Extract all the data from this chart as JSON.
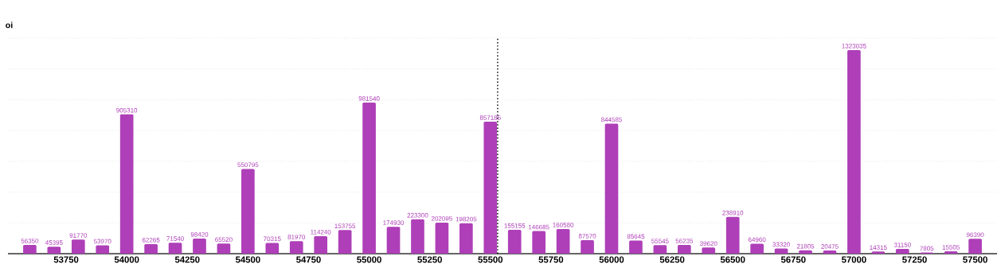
{
  "chart_data": {
    "type": "bar",
    "ylabel": "oi",
    "x": [
      53600,
      53700,
      53800,
      53900,
      54000,
      54100,
      54200,
      54300,
      54400,
      54500,
      54600,
      54700,
      54800,
      54900,
      55000,
      55100,
      55200,
      55300,
      55400,
      55500,
      55600,
      55700,
      55800,
      55900,
      56000,
      56100,
      56200,
      56300,
      56400,
      56500,
      56600,
      56700,
      56800,
      56900,
      57000,
      57100,
      57200,
      57300,
      57400,
      57500
    ],
    "values": [
      56350,
      45395,
      91770,
      53970,
      905310,
      62265,
      71540,
      98420,
      65520,
      550795,
      70315,
      81970,
      114240,
      153755,
      981540,
      174930,
      223300,
      202095,
      198205,
      857185,
      155155,
      146685,
      160580,
      87570,
      844585,
      85645,
      55545,
      56235,
      39620,
      238910,
      64960,
      33320,
      21805,
      20475,
      1323035,
      14315,
      31150,
      7805,
      15505,
      96390
    ],
    "color": "#ae3fb8",
    "data_labels": true,
    "xlim": [
      53510,
      57590
    ],
    "xticks": [
      53750,
      54000,
      54250,
      54500,
      54750,
      55000,
      55250,
      55500,
      55750,
      56000,
      56250,
      56500,
      56750,
      57000,
      57250,
      57500
    ],
    "ylim": [
      0,
      1400000
    ],
    "grid": "y",
    "tick_labels": "x",
    "ref_lines": [
      {
        "axis": "x",
        "value": 55530,
        "color": "#000000",
        "line_style": "dotted"
      }
    ]
  }
}
